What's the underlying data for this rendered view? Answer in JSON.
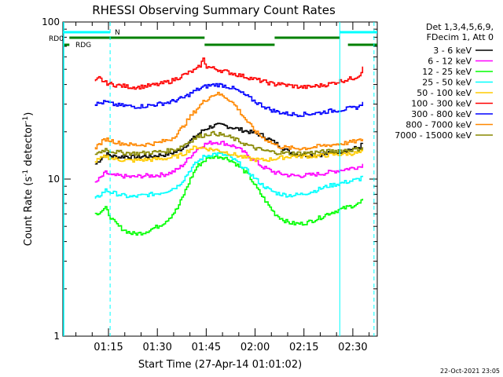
{
  "chart_data": {
    "type": "line",
    "title": "RHESSI Observing Summary Count Rates",
    "xlabel": "Start Time (27-Apr-14 01:01:02)",
    "ylabel_main": "Count Rate (s",
    "ylabel_sup1": "-1",
    "ylabel_mid": " detector",
    "ylabel_sup2": "-1",
    "ylabel_end": ")",
    "y_scale": "log",
    "ylim": [
      1,
      100
    ],
    "xlim_minutes": [
      61.0,
      157.5
    ],
    "x_ticks": [
      {
        "minutes": 75,
        "label": "01:15"
      },
      {
        "minutes": 90,
        "label": "01:30"
      },
      {
        "minutes": 105,
        "label": "01:45"
      },
      {
        "minutes": 120,
        "label": "02:00"
      },
      {
        "minutes": 135,
        "label": "02:15"
      },
      {
        "minutes": 150,
        "label": "02:30"
      }
    ],
    "y_ticks": [
      {
        "value": 1,
        "label": "1"
      },
      {
        "value": 10,
        "label": "10"
      },
      {
        "value": 100,
        "label": "100"
      }
    ],
    "legend": {
      "placement": "top-right-outside",
      "header_line1": "Det 1,3,4,5,6,9,",
      "header_line2": "FDecim 1, Att 0"
    },
    "series": [
      {
        "name": "3 - 6 keV",
        "color": "#000000",
        "x": [
          71,
          74,
          76,
          78,
          80,
          82,
          84,
          86,
          88,
          90,
          92,
          94,
          96,
          98,
          100,
          102,
          104,
          106,
          108,
          110,
          112,
          114,
          116,
          118,
          120,
          122,
          124,
          126,
          128,
          130,
          132,
          134,
          136,
          138,
          140,
          142,
          144,
          146,
          148,
          150,
          152,
          153
        ],
        "y": [
          12.5,
          14.5,
          14,
          13.8,
          14,
          13.8,
          13.8,
          14,
          13.9,
          14.2,
          14.3,
          14.6,
          15,
          16,
          17.5,
          19,
          20.5,
          21.5,
          22,
          22,
          21.5,
          21,
          20.5,
          20,
          19.5,
          19,
          18,
          17,
          16,
          15,
          14.5,
          14.3,
          14.2,
          14.2,
          14.3,
          14.5,
          14.8,
          15,
          15.3,
          15.6,
          16,
          17
        ]
      },
      {
        "name": "6 - 12 keV",
        "color": "#ff00ff",
        "x": [
          71,
          74,
          76,
          78,
          80,
          82,
          84,
          86,
          88,
          90,
          92,
          94,
          96,
          98,
          100,
          102,
          104,
          106,
          108,
          110,
          112,
          114,
          116,
          118,
          120,
          122,
          124,
          126,
          128,
          130,
          132,
          134,
          136,
          138,
          140,
          142,
          144,
          146,
          148,
          150,
          152,
          153
        ],
        "y": [
          9.5,
          11,
          10.5,
          10.5,
          10.4,
          10.3,
          10.4,
          10.5,
          10.5,
          10.6,
          10.7,
          11,
          11.5,
          12.5,
          14,
          15.5,
          16.5,
          17,
          17.2,
          17,
          16.5,
          16,
          15,
          14,
          13,
          12,
          11.5,
          11,
          10.8,
          10.6,
          10.5,
          10.5,
          10.6,
          10.7,
          10.8,
          11,
          11.2,
          11.4,
          11.6,
          11.8,
          12,
          12.5
        ]
      },
      {
        "name": "12 - 25 keV",
        "color": "#00ff00",
        "x": [
          71,
          74,
          76,
          78,
          80,
          82,
          84,
          86,
          88,
          90,
          92,
          94,
          96,
          98,
          100,
          102,
          104,
          106,
          108,
          110,
          112,
          114,
          116,
          118,
          120,
          122,
          124,
          126,
          128,
          130,
          132,
          134,
          136,
          138,
          140,
          142,
          144,
          146,
          148,
          150,
          152,
          153
        ],
        "y": [
          6,
          6.5,
          5.5,
          5,
          4.7,
          4.5,
          4.5,
          4.6,
          4.8,
          5,
          5.3,
          5.8,
          6.5,
          8,
          10,
          12,
          13,
          13.8,
          14,
          13.8,
          13.3,
          12.5,
          11.5,
          10.5,
          9,
          7.8,
          6.8,
          6,
          5.6,
          5.3,
          5.2,
          5.2,
          5.3,
          5.5,
          5.7,
          6,
          6.2,
          6.4,
          6.6,
          6.8,
          7,
          7.5
        ]
      },
      {
        "name": "25 - 50 keV",
        "color": "#00ffff",
        "x": [
          71,
          74,
          76,
          78,
          80,
          82,
          84,
          86,
          88,
          90,
          92,
          94,
          96,
          98,
          100,
          102,
          104,
          106,
          108,
          110,
          112,
          114,
          116,
          118,
          120,
          122,
          124,
          126,
          128,
          130,
          132,
          134,
          136,
          138,
          140,
          142,
          144,
          146,
          148,
          150,
          152,
          153
        ],
        "y": [
          7.5,
          8.5,
          8.2,
          8,
          7.8,
          7.7,
          7.8,
          7.9,
          8,
          8.1,
          8.3,
          8.6,
          9,
          10,
          11.5,
          12.8,
          13.8,
          14.3,
          14.5,
          14.3,
          13.8,
          13,
          12,
          11,
          10,
          9.2,
          8.6,
          8.2,
          8,
          7.9,
          7.9,
          8,
          8.2,
          8.4,
          8.7,
          9,
          9.2,
          9.4,
          9.6,
          9.8,
          10,
          10.5
        ]
      },
      {
        "name": "50 - 100 keV",
        "color": "#ffcc00",
        "x": [
          71,
          74,
          76,
          78,
          80,
          82,
          84,
          86,
          88,
          90,
          92,
          94,
          96,
          98,
          100,
          102,
          104,
          106,
          108,
          110,
          112,
          114,
          116,
          118,
          120,
          122,
          124,
          126,
          128,
          130,
          132,
          134,
          136,
          138,
          140,
          142,
          144,
          146,
          148,
          150,
          152,
          153
        ],
        "y": [
          13,
          14,
          13.5,
          13.3,
          13.2,
          13.1,
          13.2,
          13.3,
          13.3,
          13.4,
          13.5,
          13.7,
          14,
          14.5,
          15.5,
          16,
          15.8,
          15.5,
          15.3,
          15,
          14.6,
          14.2,
          13.8,
          13.5,
          13.3,
          13.2,
          13.3,
          13.5,
          13.7,
          13.9,
          14,
          14,
          14,
          14,
          14.1,
          14.2,
          14.3,
          14.4,
          14.5,
          14.6,
          14.7,
          15
        ]
      },
      {
        "name": "100 - 300 keV",
        "color": "#ff0000",
        "x": [
          71,
          72,
          74,
          76,
          78,
          80,
          82,
          84,
          86,
          88,
          90,
          92,
          94,
          96,
          98,
          100,
          102,
          103,
          104,
          105,
          126,
          127,
          128,
          130,
          132,
          134,
          136,
          138,
          140,
          142,
          144,
          146,
          148,
          150,
          152,
          153
        ],
        "y": [
          42,
          44,
          41,
          40,
          39.5,
          39,
          38.5,
          38.5,
          39,
          39.5,
          40,
          41,
          42,
          44,
          46,
          48,
          50,
          53,
          58,
          52,
          40,
          41,
          40,
          39.5,
          39,
          38.5,
          38.5,
          39,
          39.5,
          40,
          41,
          42,
          43,
          44,
          46,
          52
        ]
      },
      {
        "name": "300 - 800 keV",
        "color": "#0000ff",
        "x": [
          71,
          74,
          76,
          78,
          80,
          82,
          84,
          86,
          88,
          90,
          92,
          94,
          96,
          98,
          100,
          102,
          104,
          106,
          108,
          110,
          112,
          114,
          116,
          118,
          120,
          122,
          124,
          126,
          128,
          130,
          132,
          134,
          136,
          138,
          140,
          142,
          144,
          146,
          148,
          150,
          152,
          153
        ],
        "y": [
          30,
          31,
          30,
          29.5,
          29.3,
          29,
          29,
          29.2,
          29.5,
          30,
          30.5,
          31,
          32,
          33,
          35,
          37,
          38.5,
          39.5,
          40,
          39.5,
          38.5,
          37,
          35,
          33,
          31,
          29.5,
          28,
          27,
          26.5,
          26,
          25.8,
          25.8,
          26,
          26.2,
          26.5,
          27,
          27.3,
          27.6,
          28,
          28.3,
          29,
          31
        ]
      },
      {
        "name": "800 - 7000 keV",
        "color": "#ff8800",
        "x": [
          71,
          74,
          76,
          78,
          80,
          82,
          84,
          86,
          88,
          90,
          92,
          94,
          96,
          98,
          100,
          102,
          104,
          106,
          108,
          110,
          112,
          114,
          116,
          118,
          120,
          122,
          124,
          126,
          128,
          130,
          132,
          134,
          136,
          138,
          140,
          142,
          144,
          146,
          148,
          150,
          152,
          153
        ],
        "y": [
          16,
          18,
          17.5,
          17,
          16.8,
          16.5,
          16.5,
          16.6,
          16.8,
          17,
          17.5,
          18,
          19.5,
          22,
          25,
          28,
          31,
          33.5,
          35,
          34,
          32,
          29,
          25.5,
          22.5,
          20,
          18.5,
          17.5,
          16.5,
          16,
          15.8,
          15.7,
          15.7,
          15.8,
          16,
          16.2,
          16.4,
          16.6,
          16.8,
          17,
          17.3,
          17.6,
          18
        ]
      },
      {
        "name": "7000 - 15000 keV",
        "color": "#888800",
        "x": [
          71,
          74,
          76,
          78,
          80,
          82,
          84,
          86,
          88,
          90,
          92,
          94,
          96,
          98,
          100,
          102,
          104,
          106,
          108,
          110,
          112,
          114,
          116,
          118,
          120,
          122,
          124,
          126,
          128,
          130,
          132,
          134,
          136,
          138,
          140,
          142,
          144,
          146,
          148,
          150,
          152,
          153
        ],
        "y": [
          14.5,
          15.5,
          15,
          14.8,
          14.7,
          14.6,
          14.6,
          14.7,
          14.8,
          14.9,
          15,
          15.3,
          15.6,
          16.5,
          17.5,
          18.5,
          19,
          19.5,
          19.5,
          19,
          18.5,
          17.8,
          17,
          16.3,
          15.7,
          15.3,
          15,
          14.8,
          14.7,
          14.6,
          14.6,
          14.6,
          14.7,
          14.8,
          14.9,
          15,
          15.1,
          15.2,
          15.3,
          15.4,
          15.6,
          16
        ]
      }
    ],
    "flag_bars": [
      {
        "label": "N",
        "color": "#00ffff",
        "segments": [
          [
            61.0,
            75.5
          ],
          [
            146.0,
            157.5
          ]
        ]
      },
      {
        "label": "RD0",
        "color": "#008000",
        "segments": [
          [
            63.0,
            104.5
          ],
          [
            126.0,
            146.0
          ]
        ]
      },
      {
        "label": "RDG",
        "color": "#008000",
        "segments": [
          [
            61.0,
            63.0
          ],
          [
            104.5,
            126.0
          ],
          [
            148.5,
            157.5
          ]
        ]
      }
    ],
    "vertical_markers": [
      {
        "minutes": 75.5,
        "color": "#00ffff",
        "style": "dashed"
      },
      {
        "minutes": 146.0,
        "color": "#00ffff",
        "style": "solid"
      },
      {
        "minutes": 156.5,
        "color": "#00ffff",
        "style": "dashed"
      }
    ],
    "footer_timestamp": "22-Oct-2021 23:05",
    "grid": false
  }
}
